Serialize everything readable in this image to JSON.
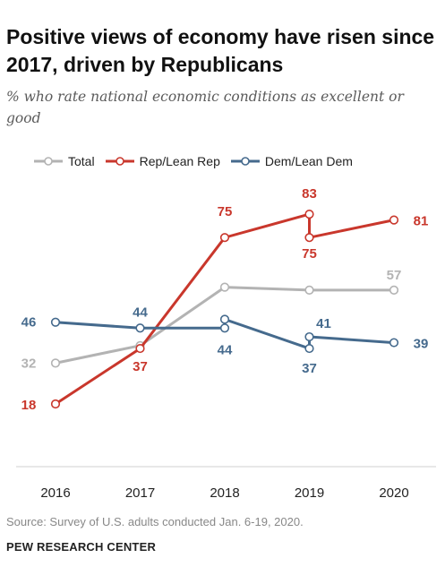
{
  "title": "Positive views of economy have risen since 2017, driven by Republicans",
  "subtitle": "% who rate national economic conditions as excellent or good",
  "source": "Source: Survey of U.S. adults conducted Jan. 6-19, 2020.",
  "organization": "PEW RESEARCH CENTER",
  "colors": {
    "total": "#b3b3b3",
    "rep": "#c9372c",
    "dem": "#456a8d"
  },
  "chart_data": {
    "type": "line",
    "categories": [
      "2016",
      "2017",
      "2018",
      "2019",
      "2020"
    ],
    "legend_position": "top-left",
    "grid": false,
    "series": [
      {
        "name": "Total",
        "color": "#b3b3b3",
        "points": [
          [
            2016,
            32
          ],
          [
            2017,
            38
          ],
          [
            2018,
            58
          ],
          [
            2019,
            57
          ],
          [
            2020,
            57
          ]
        ],
        "labels": [
          {
            "x": 2016,
            "y": 32,
            "text": "32"
          },
          {
            "x": 2020,
            "y": 57,
            "text": "57"
          }
        ]
      },
      {
        "name": "Rep/Lean Rep",
        "color": "#c9372c",
        "points": [
          [
            2016,
            18
          ],
          [
            2017,
            37
          ],
          [
            2018,
            75
          ],
          [
            2019,
            83
          ],
          [
            2019,
            75
          ],
          [
            2020,
            81
          ]
        ],
        "labels": [
          {
            "x": 2016,
            "y": 18,
            "text": "18"
          },
          {
            "x": 2017,
            "y": 37,
            "text": "37"
          },
          {
            "x": 2018,
            "y": 75,
            "text": "75"
          },
          {
            "x": 2019,
            "y": 83,
            "text": "83"
          },
          {
            "x": 2019,
            "y": 75,
            "text": "75"
          },
          {
            "x": 2020,
            "y": 81,
            "text": "81"
          }
        ]
      },
      {
        "name": "Dem/Lean Dem",
        "color": "#456a8d",
        "points": [
          [
            2016,
            46
          ],
          [
            2017,
            44
          ],
          [
            2018,
            44
          ],
          [
            2018,
            47
          ],
          [
            2019,
            37
          ],
          [
            2019,
            41
          ],
          [
            2020,
            39
          ]
        ],
        "labels": [
          {
            "x": 2016,
            "y": 46,
            "text": "46"
          },
          {
            "x": 2017,
            "y": 44,
            "text": "44"
          },
          {
            "x": 2018,
            "y": 44,
            "text": "44"
          },
          {
            "x": 2019,
            "y": 37,
            "text": "37"
          },
          {
            "x": 2019,
            "y": 41,
            "text": "41"
          },
          {
            "x": 2020,
            "y": 39,
            "text": "39"
          }
        ]
      }
    ]
  }
}
